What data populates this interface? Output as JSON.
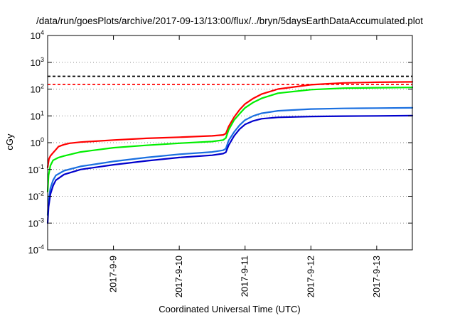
{
  "chart_data": {
    "type": "line",
    "title": "/data/run/goesPlots/archive/2017-09-13/13:00/flux/../bryn/5daysEarthDataAccumulated.plot",
    "xlabel": "Coordinated Universal Time (UTC)",
    "ylabel": "cGy",
    "y_scale": "log",
    "ylim": [
      0.0001,
      10000
    ],
    "xlim": [
      "2017-09-08T00:00",
      "2017-09-13T13:00"
    ],
    "grid": "horizontal-dotted",
    "y_ticks": [
      {
        "value": 0.0001,
        "base": "10",
        "exp": "-4"
      },
      {
        "value": 0.001,
        "base": "10",
        "exp": "-3"
      },
      {
        "value": 0.01,
        "base": "10",
        "exp": "-2"
      },
      {
        "value": 0.1,
        "base": "10",
        "exp": "-1"
      },
      {
        "value": 1,
        "base": "10",
        "exp": "0"
      },
      {
        "value": 10,
        "base": "10",
        "exp": "1"
      },
      {
        "value": 100,
        "base": "10",
        "exp": "2"
      },
      {
        "value": 1000,
        "base": "10",
        "exp": "3"
      },
      {
        "value": 10000,
        "base": "10",
        "exp": "4"
      }
    ],
    "x_ticks": [
      {
        "value": "2017-09-09T00:00",
        "label": "2017-9-9"
      },
      {
        "value": "2017-09-10T00:00",
        "label": "2017-9-10"
      },
      {
        "value": "2017-09-11T00:00",
        "label": "2017-9-11"
      },
      {
        "value": "2017-09-12T00:00",
        "label": "2017-9-12"
      },
      {
        "value": "2017-09-13T00:00",
        "label": "2017-9-13"
      }
    ],
    "thresholds": [
      {
        "value": 300,
        "color": "#000000",
        "style": "dashed"
      },
      {
        "value": 150,
        "color": "#ff0000",
        "style": "dashed"
      }
    ],
    "series": [
      {
        "color": "#ff0000",
        "x": [
          "2017-09-08T00:00",
          "2017-09-08T00:30",
          "2017-09-08T01:00",
          "2017-09-08T02:00",
          "2017-09-08T03:00",
          "2017-09-08T04:00",
          "2017-09-08T06:00",
          "2017-09-08T08:00",
          "2017-09-08T12:00",
          "2017-09-09T00:00",
          "2017-09-09T12:00",
          "2017-09-10T00:00",
          "2017-09-10T12:00",
          "2017-09-10T16:00",
          "2017-09-10T17:00",
          "2017-09-10T18:00",
          "2017-09-10T20:00",
          "2017-09-10T22:00",
          "2017-09-11T00:00",
          "2017-09-11T03:00",
          "2017-09-11T06:00",
          "2017-09-11T12:00",
          "2017-09-12T00:00",
          "2017-09-12T12:00",
          "2017-09-13T00:00",
          "2017-09-13T13:00"
        ],
        "y": [
          0.12,
          0.25,
          0.32,
          0.42,
          0.55,
          0.72,
          0.85,
          0.95,
          1.05,
          1.25,
          1.45,
          1.6,
          1.8,
          1.95,
          2.2,
          4,
          9,
          17,
          28,
          45,
          65,
          100,
          145,
          170,
          180,
          185
        ]
      },
      {
        "color": "#00ee00",
        "x": [
          "2017-09-08T00:00",
          "2017-09-08T00:20",
          "2017-09-08T01:00",
          "2017-09-08T02:00",
          "2017-09-08T04:00",
          "2017-09-08T06:00",
          "2017-09-08T12:00",
          "2017-09-09T00:00",
          "2017-09-09T12:00",
          "2017-09-10T00:00",
          "2017-09-10T12:00",
          "2017-09-10T16:00",
          "2017-09-10T17:00",
          "2017-09-10T18:00",
          "2017-09-10T20:00",
          "2017-09-10T22:00",
          "2017-09-11T00:00",
          "2017-09-11T03:00",
          "2017-09-11T06:00",
          "2017-09-11T12:00",
          "2017-09-12T00:00",
          "2017-09-12T12:00",
          "2017-09-13T00:00",
          "2017-09-13T13:00"
        ],
        "y": [
          0.015,
          0.06,
          0.14,
          0.22,
          0.28,
          0.32,
          0.45,
          0.65,
          0.8,
          0.95,
          1.1,
          1.25,
          1.5,
          3,
          7,
          12,
          20,
          32,
          45,
          70,
          95,
          108,
          112,
          115
        ]
      },
      {
        "color": "#1a6fe0",
        "x": [
          "2017-09-08T00:00",
          "2017-09-08T00:20",
          "2017-09-08T01:00",
          "2017-09-08T02:00",
          "2017-09-08T03:00",
          "2017-09-08T06:00",
          "2017-09-08T12:00",
          "2017-09-09T00:00",
          "2017-09-09T12:00",
          "2017-09-10T00:00",
          "2017-09-10T12:00",
          "2017-09-10T16:00",
          "2017-09-10T17:00",
          "2017-09-10T18:00",
          "2017-09-10T20:00",
          "2017-09-10T22:00",
          "2017-09-11T00:00",
          "2017-09-11T03:00",
          "2017-09-11T06:00",
          "2017-09-11T12:00",
          "2017-09-12T00:00",
          "2017-09-12T12:00",
          "2017-09-13T00:00",
          "2017-09-13T13:00"
        ],
        "y": [
          0.002,
          0.007,
          0.02,
          0.04,
          0.06,
          0.09,
          0.13,
          0.2,
          0.28,
          0.37,
          0.45,
          0.52,
          0.6,
          1.2,
          2.5,
          4.5,
          7,
          10,
          12.5,
          15.5,
          18,
          19,
          19.5,
          20
        ]
      },
      {
        "color": "#0000cc",
        "x": [
          "2017-09-08T00:00",
          "2017-09-08T00:20",
          "2017-09-08T01:00",
          "2017-09-08T02:00",
          "2017-09-08T03:00",
          "2017-09-08T06:00",
          "2017-09-08T12:00",
          "2017-09-09T00:00",
          "2017-09-09T12:00",
          "2017-09-10T00:00",
          "2017-09-10T12:00",
          "2017-09-10T16:00",
          "2017-09-10T17:00",
          "2017-09-10T18:00",
          "2017-09-10T20:00",
          "2017-09-10T22:00",
          "2017-09-11T00:00",
          "2017-09-11T03:00",
          "2017-09-11T06:00",
          "2017-09-11T12:00",
          "2017-09-12T00:00",
          "2017-09-12T12:00",
          "2017-09-13T00:00",
          "2017-09-13T13:00"
        ],
        "y": [
          0.001,
          0.004,
          0.012,
          0.025,
          0.04,
          0.065,
          0.1,
          0.15,
          0.21,
          0.28,
          0.34,
          0.39,
          0.44,
          0.8,
          1.8,
          3.2,
          4.8,
          6.5,
          7.8,
          8.8,
          9.5,
          9.8,
          10,
          10.2
        ]
      }
    ]
  }
}
